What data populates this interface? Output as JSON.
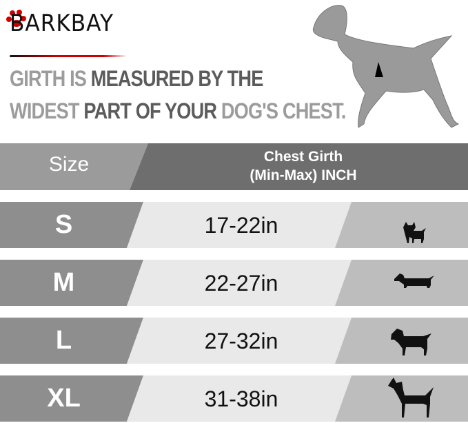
{
  "brand": "BARKBAY",
  "headline": {
    "line1": [
      {
        "text": "GIRTH IS ",
        "tone": "light"
      },
      {
        "text": "MEASURED BY THE",
        "tone": "dark"
      }
    ],
    "line2": [
      {
        "text": "WIDEST ",
        "tone": "light"
      },
      {
        "text": "PART OF YOUR ",
        "tone": "dark"
      },
      {
        "text": "DOG'S CHEST.",
        "tone": "light"
      }
    ]
  },
  "table": {
    "header": {
      "size": "Size",
      "girth_line1": "Chest Girth",
      "girth_line2": "(Min-Max)  INCH"
    },
    "rows": [
      {
        "size": "S",
        "girth": "17-22in",
        "icon": "chihuahua-icon"
      },
      {
        "size": "M",
        "girth": "22-27in",
        "icon": "dachshund-icon"
      },
      {
        "size": "L",
        "girth": "27-32in",
        "icon": "labrador-icon"
      },
      {
        "size": "XL",
        "girth": "31-38in",
        "icon": "great-dane-icon"
      }
    ]
  },
  "colors": {
    "header_light": "#9b9b9b",
    "header_dark": "#6e6e6e",
    "row_left": "#8e8e8e",
    "row_mid": "#e9e9e9",
    "row_right": "#bdbdbd",
    "accent": "#cc0000"
  }
}
